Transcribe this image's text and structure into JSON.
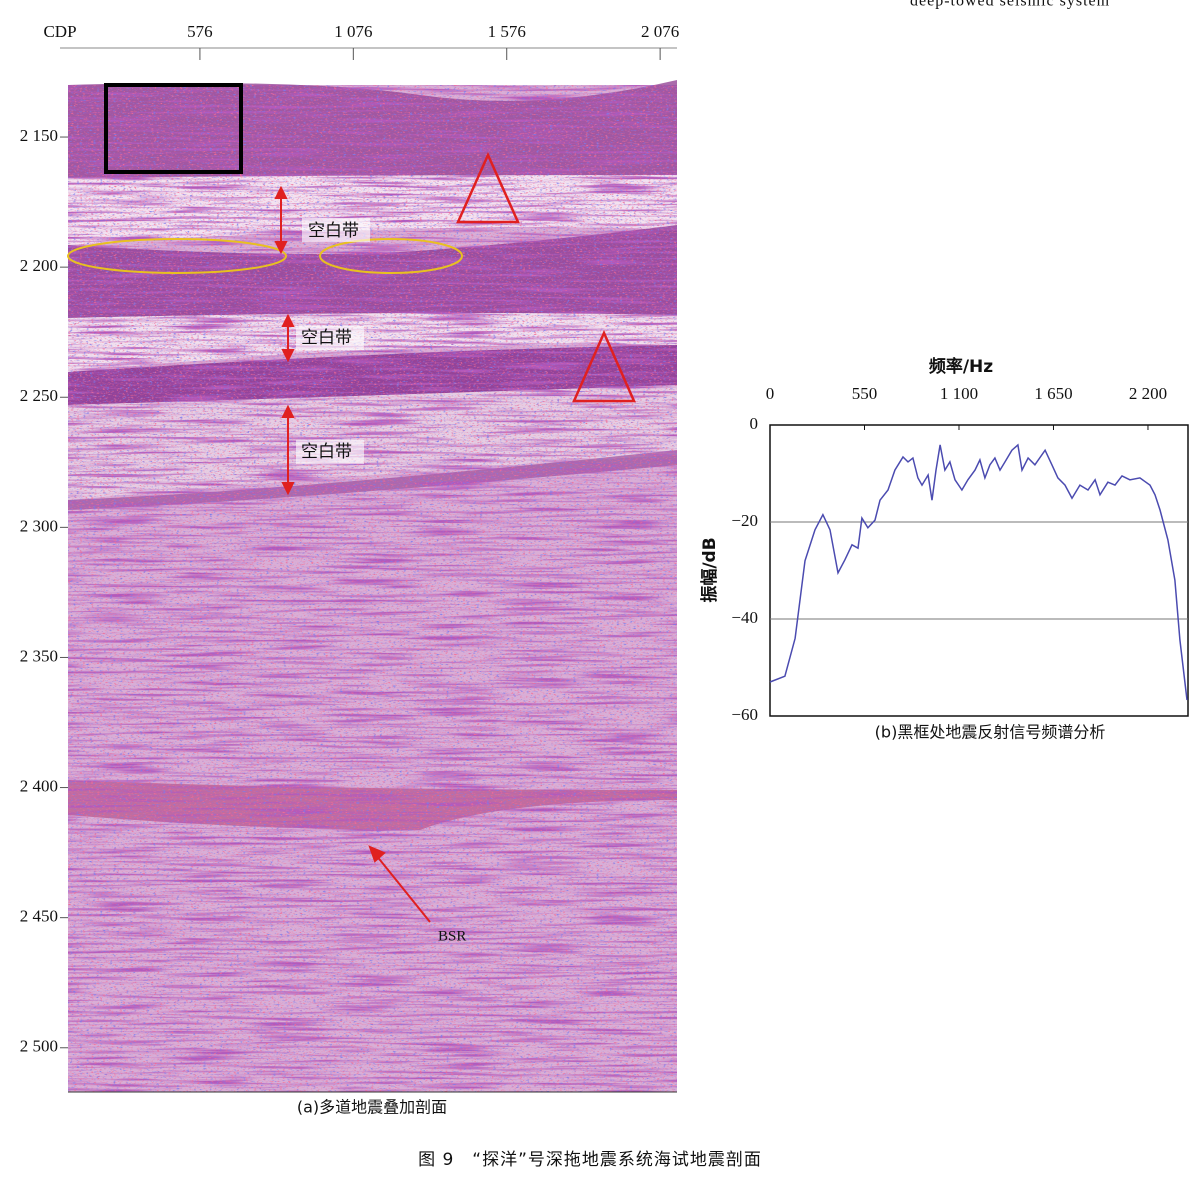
{
  "top_text": "deep-towed seismic system",
  "seismic_section": {
    "x_label": "CDP",
    "xlim": [
      146,
      2131
    ],
    "xticks": [
      {
        "value": 576,
        "label": "576"
      },
      {
        "value": 1076,
        "label": "1 076"
      },
      {
        "value": 1576,
        "label": "1 576"
      },
      {
        "value": 2076,
        "label": "2 076"
      }
    ],
    "ylim": [
      2130,
      2517
    ],
    "yticks": [
      {
        "value": 2150,
        "label": "2 150"
      },
      {
        "value": 2200,
        "label": "2 200"
      },
      {
        "value": 2250,
        "label": "2 250"
      },
      {
        "value": 2300,
        "label": "2 300"
      },
      {
        "value": 2350,
        "label": "2 350"
      },
      {
        "value": 2400,
        "label": "2 400"
      },
      {
        "value": 2450,
        "label": "2 450"
      },
      {
        "value": 2500,
        "label": "2 500"
      }
    ],
    "annotations": [
      "空白带",
      "空白带",
      "空白带",
      "BSR"
    ],
    "caption": "(a)多道地震叠加剖面"
  },
  "chart_data": {
    "type": "line",
    "title": "频率/Hz",
    "y_label": "振幅/dB",
    "caption": "(b)黑框处地震反射信号频谱分析",
    "x": [
      0,
      87,
      146,
      204,
      262,
      308,
      349,
      396,
      436,
      477,
      512,
      535,
      570,
      611,
      640,
      687,
      727,
      774,
      803,
      832,
      861,
      885,
      920,
      943,
      966,
      990,
      1018,
      1047,
      1077,
      1117,
      1152,
      1193,
      1222,
      1251,
      1280,
      1309,
      1339,
      1368,
      1408,
      1443,
      1467,
      1502,
      1542,
      1601,
      1641,
      1676,
      1717,
      1758,
      1804,
      1851,
      1892,
      1921,
      1967,
      2008,
      2049,
      2095,
      2153,
      2212,
      2241,
      2270,
      2316,
      2357,
      2386,
      2427
    ],
    "series": [
      {
        "color": "#4b4bb0",
        "values": [
          -53,
          -51.8,
          -44,
          -28,
          -21.6,
          -18.5,
          -21.6,
          -30.5,
          -27.8,
          -24.7,
          -25.4,
          -19.2,
          -21.2,
          -19.6,
          -15.5,
          -13.4,
          -9.3,
          -6.6,
          -7.6,
          -6.8,
          -10.9,
          -12.4,
          -10.3,
          -15.5,
          -9.3,
          -4.1,
          -9.3,
          -7.6,
          -11.3,
          -13.4,
          -11.3,
          -9.3,
          -7.2,
          -10.9,
          -8.2,
          -6.8,
          -9.3,
          -7.6,
          -5.2,
          -4.1,
          -9.3,
          -6.8,
          -8.2,
          -5.2,
          -8.2,
          -10.9,
          -12.4,
          -15.1,
          -12.4,
          -13.4,
          -11.3,
          -14.4,
          -11.8,
          -12.4,
          -10.5,
          -11.3,
          -10.9,
          -12.4,
          -14.4,
          -17.5,
          -23.7,
          -32,
          -44.3,
          -56.7
        ]
      }
    ],
    "xlim": [
      0,
      2433
    ],
    "xticks": [
      0,
      550,
      {
        "value": 1100,
        "label": "1 100"
      },
      {
        "value": 1650,
        "label": "1 650"
      },
      {
        "value": 2200,
        "label": "2 200"
      }
    ],
    "ylim": [
      -60,
      0
    ],
    "yticks": [
      0,
      {
        "value": -20,
        "label": "−20"
      },
      {
        "value": -40,
        "label": "−40"
      },
      {
        "value": -60,
        "label": "−60"
      }
    ],
    "grid": true
  },
  "figure_caption": "图 9　“探洋”号深拖地震系统海试地震剖面"
}
